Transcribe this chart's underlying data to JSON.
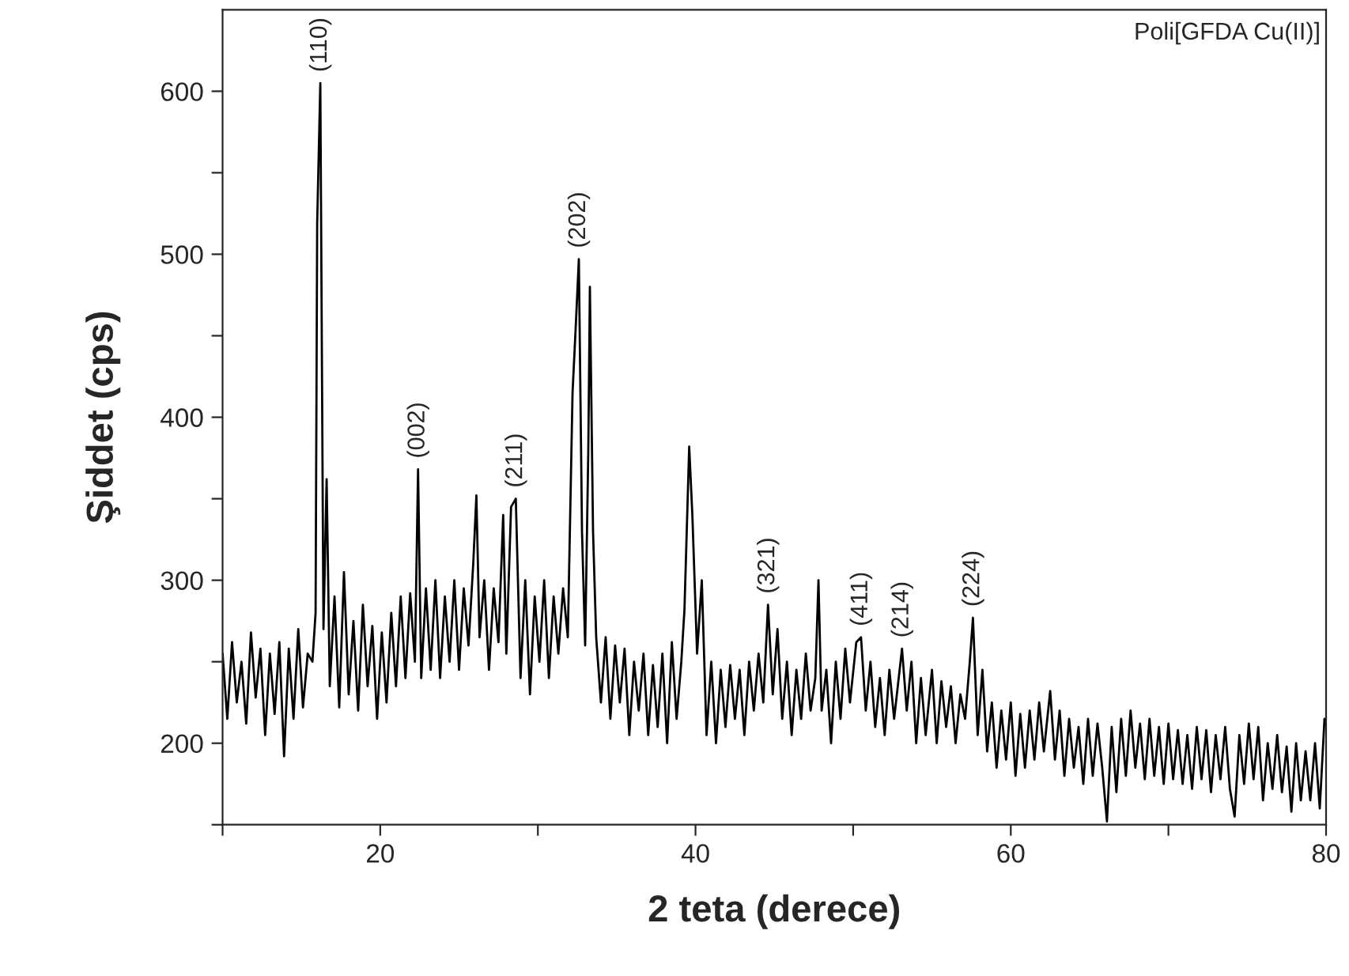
{
  "chart_data": {
    "type": "line",
    "xlabel": "2 teta (derece)",
    "ylabel": "Şiddet (cps)",
    "xlim": [
      10,
      80
    ],
    "ylim": [
      150,
      650
    ],
    "xticks": [
      {
        "value": 10,
        "label": null
      },
      20,
      {
        "value": 30,
        "label": null
      },
      40,
      {
        "value": 50,
        "label": null
      },
      60,
      {
        "value": 70,
        "label": null
      },
      80
    ],
    "yticks": [
      {
        "value": 150,
        "label": null
      },
      200,
      {
        "value": 250,
        "label": null
      },
      300,
      {
        "value": 350,
        "label": null
      },
      400,
      {
        "value": 450,
        "label": null
      },
      500,
      {
        "value": 550,
        "label": null
      },
      600
    ],
    "grid": false,
    "legend": false,
    "marker": "none",
    "line_style": "solid",
    "annotations": [
      "Poli[GFDA Cu(II)]",
      {
        "text": "(110)",
        "x": 16.2,
        "y": 605
      },
      {
        "text": "(002)",
        "x": 22.4,
        "y": 368
      },
      {
        "text": "(211)",
        "x": 28.6,
        "y": 350
      },
      {
        "text": "(202)",
        "x": 32.6,
        "y": 497
      },
      {
        "text": "(321)",
        "x": 44.6,
        "y": 285
      },
      {
        "text": "(411)",
        "x": 50.5,
        "y": 265
      },
      {
        "text": "(214)",
        "x": 53.1,
        "y": 258
      },
      {
        "text": "(224)",
        "x": 57.6,
        "y": 277
      }
    ],
    "series": [
      {
        "color": "#000000",
        "x": [
          10.0,
          10.3,
          10.6,
          10.9,
          11.2,
          11.5,
          11.8,
          12.1,
          12.4,
          12.7,
          13.0,
          13.3,
          13.6,
          13.9,
          14.2,
          14.5,
          14.8,
          15.1,
          15.4,
          15.7,
          15.9,
          16.0,
          16.2,
          16.4,
          16.6,
          16.8,
          17.1,
          17.4,
          17.7,
          18.0,
          18.3,
          18.6,
          18.9,
          19.2,
          19.5,
          19.8,
          20.1,
          20.4,
          20.7,
          21.0,
          21.3,
          21.6,
          21.9,
          22.2,
          22.4,
          22.6,
          22.9,
          23.2,
          23.5,
          23.8,
          24.1,
          24.4,
          24.7,
          25.0,
          25.3,
          25.6,
          25.9,
          26.1,
          26.3,
          26.6,
          26.9,
          27.2,
          27.5,
          27.8,
          28.0,
          28.3,
          28.6,
          28.9,
          29.2,
          29.5,
          29.8,
          30.1,
          30.4,
          30.7,
          31.0,
          31.3,
          31.6,
          31.9,
          32.2,
          32.4,
          32.6,
          32.8,
          33.0,
          33.2,
          33.3,
          33.5,
          33.7,
          34.0,
          34.3,
          34.6,
          34.9,
          35.2,
          35.5,
          35.8,
          36.1,
          36.4,
          36.7,
          37.0,
          37.3,
          37.6,
          37.9,
          38.2,
          38.5,
          38.8,
          39.1,
          39.3,
          39.6,
          39.8,
          40.1,
          40.4,
          40.7,
          41.0,
          41.3,
          41.6,
          41.9,
          42.2,
          42.5,
          42.8,
          43.1,
          43.4,
          43.7,
          44.0,
          44.3,
          44.6,
          44.9,
          45.2,
          45.5,
          45.8,
          46.1,
          46.4,
          46.7,
          47.0,
          47.3,
          47.6,
          47.8,
          48.0,
          48.3,
          48.6,
          48.9,
          49.2,
          49.5,
          49.8,
          50.2,
          50.5,
          50.8,
          51.1,
          51.4,
          51.7,
          52.0,
          52.3,
          52.6,
          53.1,
          53.4,
          53.7,
          54.0,
          54.3,
          54.6,
          55.0,
          55.3,
          55.6,
          55.9,
          56.2,
          56.5,
          56.8,
          57.1,
          57.4,
          57.6,
          57.9,
          58.2,
          58.5,
          58.8,
          59.1,
          59.4,
          59.7,
          60.0,
          60.3,
          60.6,
          60.9,
          61.2,
          61.5,
          61.8,
          62.1,
          62.5,
          62.8,
          63.1,
          63.4,
          63.7,
          64.0,
          64.3,
          64.6,
          64.9,
          65.2,
          65.5,
          65.8,
          66.1,
          66.4,
          66.7,
          67.0,
          67.3,
          67.6,
          67.9,
          68.2,
          68.5,
          68.8,
          69.1,
          69.4,
          69.7,
          70.0,
          70.3,
          70.6,
          70.9,
          71.2,
          71.5,
          71.8,
          72.1,
          72.4,
          72.7,
          73.0,
          73.3,
          73.6,
          73.9,
          74.2,
          74.5,
          74.8,
          75.1,
          75.4,
          75.7,
          76.0,
          76.3,
          76.6,
          76.9,
          77.2,
          77.5,
          77.8,
          78.1,
          78.4,
          78.7,
          79.0,
          79.3,
          79.6,
          79.9
        ],
        "values": [
          255,
          215,
          262,
          225,
          250,
          212,
          268,
          228,
          258,
          205,
          255,
          218,
          262,
          192,
          258,
          215,
          270,
          222,
          255,
          250,
          280,
          519,
          605,
          270,
          362,
          235,
          290,
          222,
          305,
          230,
          275,
          220,
          285,
          235,
          272,
          215,
          268,
          225,
          280,
          235,
          290,
          240,
          292,
          250,
          368,
          240,
          295,
          245,
          300,
          240,
          290,
          250,
          300,
          245,
          295,
          260,
          310,
          352,
          265,
          300,
          245,
          295,
          262,
          340,
          255,
          345,
          350,
          240,
          300,
          230,
          290,
          250,
          300,
          240,
          290,
          255,
          295,
          265,
          415,
          455,
          497,
          330,
          260,
          380,
          480,
          330,
          265,
          225,
          265,
          215,
          260,
          225,
          258,
          205,
          250,
          220,
          255,
          205,
          248,
          210,
          255,
          200,
          262,
          215,
          250,
          282,
          382,
          340,
          255,
          300,
          205,
          250,
          200,
          245,
          210,
          248,
          215,
          245,
          205,
          250,
          220,
          255,
          225,
          285,
          230,
          270,
          215,
          250,
          205,
          245,
          215,
          255,
          220,
          240,
          300,
          220,
          245,
          200,
          250,
          215,
          258,
          225,
          262,
          265,
          220,
          250,
          210,
          240,
          205,
          245,
          215,
          258,
          220,
          250,
          200,
          240,
          205,
          245,
          200,
          238,
          210,
          235,
          200,
          230,
          215,
          250,
          277,
          205,
          245,
          195,
          225,
          185,
          220,
          190,
          225,
          180,
          218,
          185,
          220,
          190,
          225,
          195,
          232,
          190,
          220,
          180,
          215,
          185,
          210,
          175,
          215,
          180,
          212,
          185,
          152,
          210,
          170,
          215,
          180,
          220,
          185,
          212,
          178,
          215,
          180,
          210,
          175,
          212,
          178,
          208,
          175,
          205,
          172,
          210,
          178,
          208,
          170,
          205,
          178,
          210,
          172,
          155,
          205,
          175,
          212,
          178,
          210,
          165,
          200,
          172,
          205,
          170,
          198,
          158,
          200,
          165,
          195,
          165,
          200,
          160,
          215
        ]
      }
    ]
  }
}
